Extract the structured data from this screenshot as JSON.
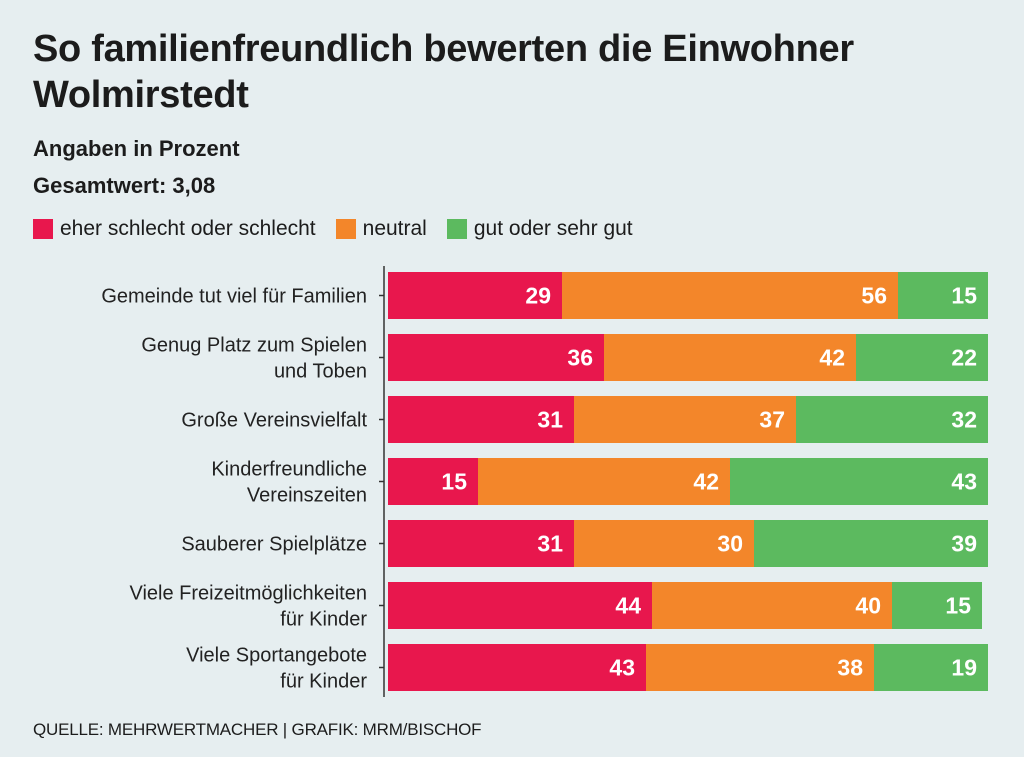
{
  "title": "So familienfreundlich bewerten die Einwohner Wolmirstedt",
  "subtitle": "Angaben in Prozent",
  "overall": "Gesamtwert: 3,08",
  "source": "QUELLE: MEHRWERTMACHER | GRAFIK: MRM/BISCHOF",
  "colors": {
    "bad": "#e8174d",
    "neutral": "#f3862a",
    "good": "#5cba5f",
    "background": "#e6eef0"
  },
  "chart_data": {
    "type": "bar",
    "orientation": "horizontal",
    "stacked": true,
    "xlim": [
      0,
      100
    ],
    "legend_position": "top-left",
    "categories": [
      [
        "Gemeinde tut viel für Familien"
      ],
      [
        "Genug Platz zum Spielen",
        "und Toben"
      ],
      [
        "Große Vereinsvielfalt"
      ],
      [
        "Kinderfreundliche",
        "Vereinszeiten"
      ],
      [
        "Sauberer Spielplätze"
      ],
      [
        "Viele Freizeitmöglichkeiten",
        "für Kinder"
      ],
      [
        "Viele Sportangebote",
        "für Kinder"
      ]
    ],
    "series": [
      {
        "name": "eher schlecht oder schlecht",
        "color_key": "bad",
        "values": [
          29,
          36,
          31,
          15,
          31,
          44,
          43
        ]
      },
      {
        "name": "neutral",
        "color_key": "neutral",
        "values": [
          56,
          42,
          37,
          42,
          30,
          40,
          38
        ]
      },
      {
        "name": "gut oder sehr gut",
        "color_key": "good",
        "values": [
          15,
          22,
          32,
          43,
          39,
          15,
          19
        ]
      }
    ]
  }
}
